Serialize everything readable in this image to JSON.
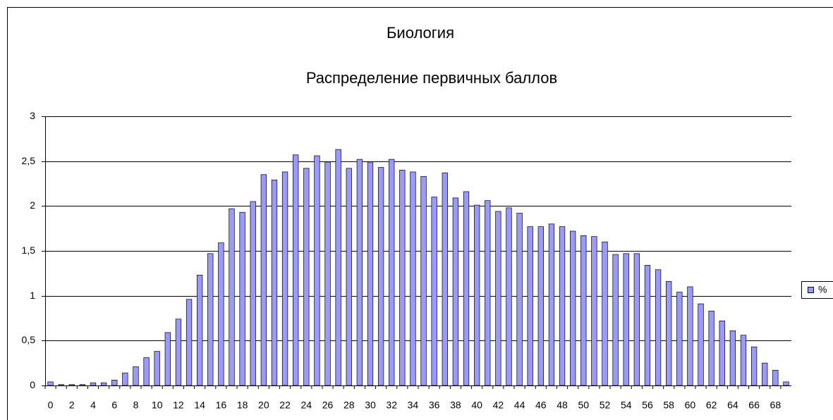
{
  "chart_data": {
    "type": "bar",
    "title": "Биология",
    "subtitle": "Распределение первичных баллов",
    "categories": [
      0,
      null,
      2,
      null,
      4,
      null,
      6,
      null,
      8,
      null,
      10,
      null,
      12,
      null,
      14,
      null,
      16,
      null,
      18,
      null,
      20,
      null,
      22,
      null,
      24,
      null,
      26,
      null,
      28,
      null,
      30,
      null,
      32,
      null,
      34,
      null,
      36,
      null,
      38,
      null,
      40,
      null,
      42,
      null,
      44,
      null,
      46,
      null,
      48,
      null,
      50,
      null,
      52,
      null,
      54,
      null,
      56,
      null,
      58,
      null,
      60,
      null,
      62,
      null,
      64,
      null,
      66,
      null,
      68,
      null
    ],
    "series": [
      {
        "name": "%",
        "color": "#9999ff",
        "values": [
          0.04,
          0.01,
          0.01,
          0.01,
          0.03,
          0.03,
          0.06,
          0.14,
          0.21,
          0.31,
          0.38,
          0.59,
          0.74,
          0.96,
          1.23,
          1.47,
          1.59,
          1.97,
          1.93,
          2.05,
          2.35,
          2.29,
          2.38,
          2.57,
          2.42,
          2.56,
          2.49,
          2.63,
          2.42,
          2.52,
          2.49,
          2.43,
          2.52,
          2.4,
          2.38,
          2.33,
          2.1,
          2.37,
          2.09,
          2.16,
          2.01,
          2.06,
          1.94,
          1.98,
          1.92,
          1.77,
          1.77,
          1.8,
          1.77,
          1.72,
          1.67,
          1.66,
          1.6,
          1.46,
          1.47,
          1.47,
          1.34,
          1.29,
          1.16,
          1.04,
          1.1,
          0.91,
          0.83,
          0.72,
          0.61,
          0.56,
          0.43,
          0.25,
          0.17,
          0.04
        ]
      }
    ],
    "ylim": [
      0,
      3
    ],
    "yticks": [
      0,
      {
        "value": 0.5,
        "label": "0,5"
      },
      1,
      {
        "value": 1.5,
        "label": "1,5"
      },
      2,
      {
        "value": 2.5,
        "label": "2,5"
      },
      3
    ],
    "grid": true,
    "legend": "right"
  }
}
